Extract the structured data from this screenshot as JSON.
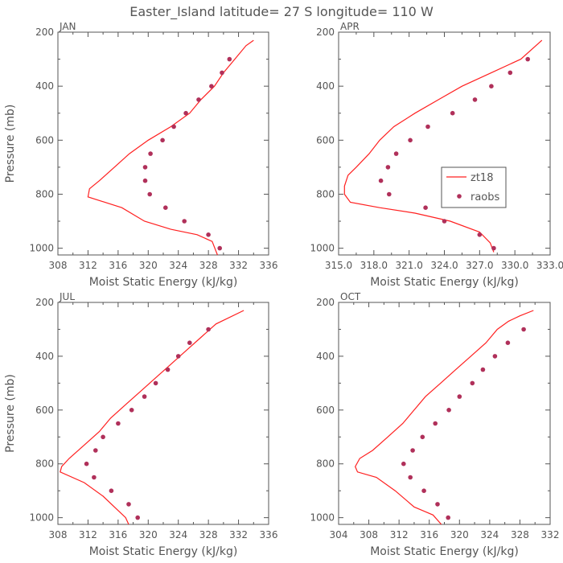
{
  "figure": {
    "title": "Easter_Island   latitude= 27 S longitude= 110 W"
  },
  "colors": {
    "model": "#ff2020",
    "obs": "#b0305a",
    "axis": "#555555"
  },
  "legend": {
    "model_label": "zt18",
    "obs_label": "raobs"
  },
  "chart_data": [
    {
      "type": "line",
      "panel": "JAN",
      "title": "JAN",
      "xlabel": "Moist Static Energy (kJ/kg)",
      "ylabel": "Pressure (mb)",
      "xlim": [
        308,
        336
      ],
      "ylim": [
        1025,
        200
      ],
      "xticks": [
        308,
        312,
        316,
        320,
        324,
        328,
        332,
        336
      ],
      "xtick_labels": [
        "308",
        "312",
        "316",
        "320",
        "324",
        "328",
        "332",
        "336"
      ],
      "yticks": [
        200,
        400,
        600,
        800,
        1000
      ],
      "ytick_labels": [
        "200",
        "400",
        "600",
        "800",
        "1000"
      ],
      "series": [
        {
          "name": "zt18",
          "mode": "line",
          "points": [
            [
              334.0,
              230
            ],
            [
              333.0,
              250
            ],
            [
              331.5,
              300
            ],
            [
              330.0,
              350
            ],
            [
              328.8,
              400
            ],
            [
              327.0,
              450
            ],
            [
              325.5,
              500
            ],
            [
              323.0,
              550
            ],
            [
              320.0,
              600
            ],
            [
              317.5,
              650
            ],
            [
              315.5,
              700
            ],
            [
              313.5,
              750
            ],
            [
              312.2,
              780
            ],
            [
              312.0,
              810
            ],
            [
              316.5,
              850
            ],
            [
              319.5,
              900
            ],
            [
              323.0,
              930
            ],
            [
              326.5,
              950
            ],
            [
              328.5,
              975
            ],
            [
              329.2,
              1025
            ]
          ]
        },
        {
          "name": "raobs",
          "mode": "markers",
          "points": [
            [
              330.8,
              300
            ],
            [
              329.8,
              350
            ],
            [
              328.4,
              400
            ],
            [
              326.7,
              450
            ],
            [
              325.0,
              500
            ],
            [
              323.4,
              550
            ],
            [
              321.9,
              600
            ],
            [
              320.3,
              650
            ],
            [
              319.6,
              700
            ],
            [
              319.6,
              750
            ],
            [
              320.2,
              800
            ],
            [
              322.3,
              850
            ],
            [
              324.8,
              900
            ],
            [
              328.0,
              950
            ],
            [
              329.5,
              1000
            ]
          ]
        }
      ]
    },
    {
      "type": "line",
      "panel": "APR",
      "title": "APR",
      "xlabel": "Moist Static Energy (kJ/kg)",
      "ylabel": "",
      "xlim": [
        315,
        333
      ],
      "ylim": [
        1025,
        200
      ],
      "xticks": [
        315,
        318,
        321,
        324,
        327,
        330,
        333
      ],
      "xtick_labels": [
        "315.0",
        "318.0",
        "321.0",
        "324.0",
        "327.0",
        "330.0",
        "333.0"
      ],
      "yticks": [
        200,
        400,
        600,
        800,
        1000
      ],
      "ytick_labels": [
        "200",
        "400",
        "600",
        "800",
        "1000"
      ],
      "series": [
        {
          "name": "zt18",
          "mode": "line",
          "points": [
            [
              332.3,
              230
            ],
            [
              330.5,
              300
            ],
            [
              328.0,
              350
            ],
            [
              325.5,
              400
            ],
            [
              323.5,
              450
            ],
            [
              321.5,
              500
            ],
            [
              319.7,
              550
            ],
            [
              318.5,
              600
            ],
            [
              317.6,
              650
            ],
            [
              316.5,
              700
            ],
            [
              315.8,
              730
            ],
            [
              315.5,
              770
            ],
            [
              315.5,
              800
            ],
            [
              316.0,
              830
            ],
            [
              318.5,
              850
            ],
            [
              321.5,
              870
            ],
            [
              324.5,
              900
            ],
            [
              327.0,
              940
            ],
            [
              327.9,
              980
            ],
            [
              328.2,
              1015
            ]
          ]
        },
        {
          "name": "raobs",
          "mode": "markers",
          "points": [
            [
              331.1,
              300
            ],
            [
              329.6,
              350
            ],
            [
              328.0,
              400
            ],
            [
              326.6,
              450
            ],
            [
              324.7,
              500
            ],
            [
              322.6,
              550
            ],
            [
              321.1,
              600
            ],
            [
              319.9,
              650
            ],
            [
              319.2,
              700
            ],
            [
              318.6,
              750
            ],
            [
              319.3,
              800
            ],
            [
              322.4,
              850
            ],
            [
              324.0,
              900
            ],
            [
              327.0,
              950
            ],
            [
              328.2,
              1000
            ]
          ]
        }
      ]
    },
    {
      "type": "line",
      "panel": "JUL",
      "title": "JUL",
      "xlabel": "Moist Static Energy (kJ/kg)",
      "ylabel": "Pressure (mb)",
      "xlim": [
        308,
        336
      ],
      "ylim": [
        1025,
        200
      ],
      "xticks": [
        308,
        312,
        316,
        320,
        324,
        328,
        332,
        336
      ],
      "xtick_labels": [
        "308",
        "312",
        "316",
        "320",
        "324",
        "328",
        "332",
        "336"
      ],
      "yticks": [
        200,
        400,
        600,
        800,
        1000
      ],
      "ytick_labels": [
        "200",
        "400",
        "600",
        "800",
        "1000"
      ],
      "series": [
        {
          "name": "zt18",
          "mode": "line",
          "points": [
            [
              332.7,
              230
            ],
            [
              329.0,
              280
            ],
            [
              327.0,
              330
            ],
            [
              325.0,
              380
            ],
            [
              323.0,
              430
            ],
            [
              321.0,
              480
            ],
            [
              319.0,
              530
            ],
            [
              317.0,
              580
            ],
            [
              315.0,
              630
            ],
            [
              313.5,
              680
            ],
            [
              311.5,
              730
            ],
            [
              309.5,
              780
            ],
            [
              308.5,
              810
            ],
            [
              308.3,
              830
            ],
            [
              311.5,
              870
            ],
            [
              314.0,
              920
            ],
            [
              315.5,
              960
            ],
            [
              317.0,
              1000
            ],
            [
              317.4,
              1025
            ]
          ]
        },
        {
          "name": "raobs",
          "mode": "markers",
          "points": [
            [
              328.0,
              300
            ],
            [
              325.5,
              350
            ],
            [
              324.0,
              400
            ],
            [
              322.6,
              450
            ],
            [
              321.0,
              500
            ],
            [
              319.5,
              550
            ],
            [
              317.8,
              600
            ],
            [
              316.0,
              650
            ],
            [
              314.0,
              700
            ],
            [
              313.0,
              750
            ],
            [
              311.8,
              800
            ],
            [
              312.8,
              850
            ],
            [
              315.1,
              900
            ],
            [
              317.4,
              950
            ],
            [
              318.6,
              1000
            ]
          ]
        }
      ]
    },
    {
      "type": "line",
      "panel": "OCT",
      "title": "OCT",
      "xlabel": "Moist Static Energy (kJ/kg)",
      "ylabel": "",
      "xlim": [
        304,
        332
      ],
      "ylim": [
        1025,
        200
      ],
      "xticks": [
        304,
        308,
        312,
        316,
        320,
        324,
        328,
        332
      ],
      "xtick_labels": [
        "304",
        "308",
        "312",
        "316",
        "320",
        "324",
        "328",
        "332"
      ],
      "yticks": [
        200,
        400,
        600,
        800,
        1000
      ],
      "ytick_labels": [
        "200",
        "400",
        "600",
        "800",
        "1000"
      ],
      "series": [
        {
          "name": "zt18",
          "mode": "line",
          "points": [
            [
              329.8,
              230
            ],
            [
              328.0,
              250
            ],
            [
              326.5,
              270
            ],
            [
              325.0,
              300
            ],
            [
              323.5,
              350
            ],
            [
              321.5,
              400
            ],
            [
              319.5,
              450
            ],
            [
              317.5,
              500
            ],
            [
              315.5,
              550
            ],
            [
              314.0,
              600
            ],
            [
              312.5,
              650
            ],
            [
              310.5,
              700
            ],
            [
              308.5,
              750
            ],
            [
              306.8,
              780
            ],
            [
              306.2,
              810
            ],
            [
              306.5,
              830
            ],
            [
              309.0,
              850
            ],
            [
              311.5,
              900
            ],
            [
              314.0,
              960
            ],
            [
              316.5,
              990
            ],
            [
              317.6,
              1025
            ]
          ]
        },
        {
          "name": "raobs",
          "mode": "markers",
          "points": [
            [
              328.5,
              300
            ],
            [
              326.4,
              350
            ],
            [
              324.7,
              400
            ],
            [
              323.1,
              450
            ],
            [
              321.7,
              500
            ],
            [
              320.0,
              550
            ],
            [
              318.6,
              600
            ],
            [
              316.8,
              650
            ],
            [
              315.1,
              700
            ],
            [
              313.8,
              750
            ],
            [
              312.6,
              800
            ],
            [
              313.5,
              850
            ],
            [
              315.3,
              900
            ],
            [
              317.1,
              950
            ],
            [
              318.5,
              1000
            ]
          ]
        }
      ]
    }
  ]
}
